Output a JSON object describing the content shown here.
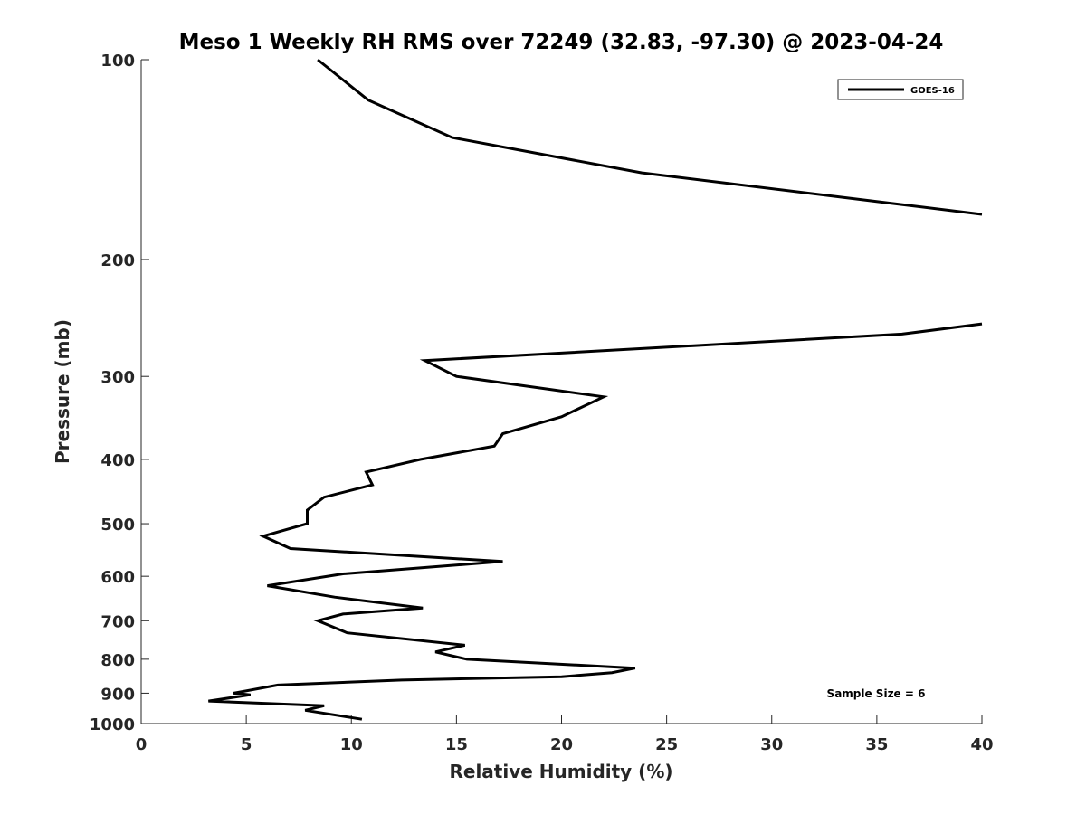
{
  "chart_data": {
    "type": "line",
    "title": "Meso 1 Weekly RH RMS over 72249 (32.83, -97.30) @ 2023-04-24",
    "xlabel": "Relative Humidity (%)",
    "ylabel": "Pressure (mb)",
    "xlim": [
      0,
      40
    ],
    "ylim": [
      1000,
      100
    ],
    "y_scale": "log",
    "x_ticks": [
      "0",
      "5",
      "10",
      "15",
      "20",
      "25",
      "30",
      "35",
      "40"
    ],
    "y_ticks": [
      "100",
      "200",
      "300",
      "400",
      "500",
      "600",
      "700",
      "800",
      "900",
      "1000"
    ],
    "grid": false,
    "legend_position": "top-right",
    "series": [
      {
        "name": "GOES-16",
        "color": "#000000",
        "segments": [
          [
            {
              "x": 8.4,
              "y": 100
            },
            {
              "x": 10.8,
              "y": 115
            },
            {
              "x": 14.8,
              "y": 131
            },
            {
              "x": 23.8,
              "y": 148
            },
            {
              "x": 36.0,
              "y": 165
            },
            {
              "x": 40.0,
              "y": 171
            }
          ],
          [
            {
              "x": 40.0,
              "y": 250
            },
            {
              "x": 36.2,
              "y": 259
            },
            {
              "x": 13.5,
              "y": 284
            },
            {
              "x": 15.0,
              "y": 300
            },
            {
              "x": 22.0,
              "y": 322
            },
            {
              "x": 20.0,
              "y": 345
            },
            {
              "x": 17.2,
              "y": 366
            },
            {
              "x": 16.8,
              "y": 382
            },
            {
              "x": 13.3,
              "y": 400
            },
            {
              "x": 10.7,
              "y": 418
            },
            {
              "x": 11.0,
              "y": 437
            },
            {
              "x": 8.7,
              "y": 456
            },
            {
              "x": 7.9,
              "y": 477
            },
            {
              "x": 7.9,
              "y": 500
            },
            {
              "x": 5.8,
              "y": 522
            },
            {
              "x": 7.1,
              "y": 545
            },
            {
              "x": 17.2,
              "y": 570
            },
            {
              "x": 9.6,
              "y": 595
            },
            {
              "x": 6.0,
              "y": 620
            },
            {
              "x": 9.2,
              "y": 645
            },
            {
              "x": 13.4,
              "y": 670
            },
            {
              "x": 9.6,
              "y": 684
            },
            {
              "x": 8.4,
              "y": 700
            },
            {
              "x": 9.8,
              "y": 730
            },
            {
              "x": 15.4,
              "y": 762
            },
            {
              "x": 14.0,
              "y": 780
            },
            {
              "x": 15.5,
              "y": 800
            },
            {
              "x": 23.5,
              "y": 825
            },
            {
              "x": 22.4,
              "y": 838
            },
            {
              "x": 20.0,
              "y": 850
            },
            {
              "x": 12.4,
              "y": 860
            },
            {
              "x": 6.5,
              "y": 875
            },
            {
              "x": 4.4,
              "y": 900
            },
            {
              "x": 5.2,
              "y": 905
            },
            {
              "x": 3.2,
              "y": 925
            },
            {
              "x": 8.7,
              "y": 940
            },
            {
              "x": 7.8,
              "y": 955
            },
            {
              "x": 10.5,
              "y": 985
            }
          ]
        ]
      }
    ],
    "annotations": [
      "Sample Size = 6"
    ]
  }
}
